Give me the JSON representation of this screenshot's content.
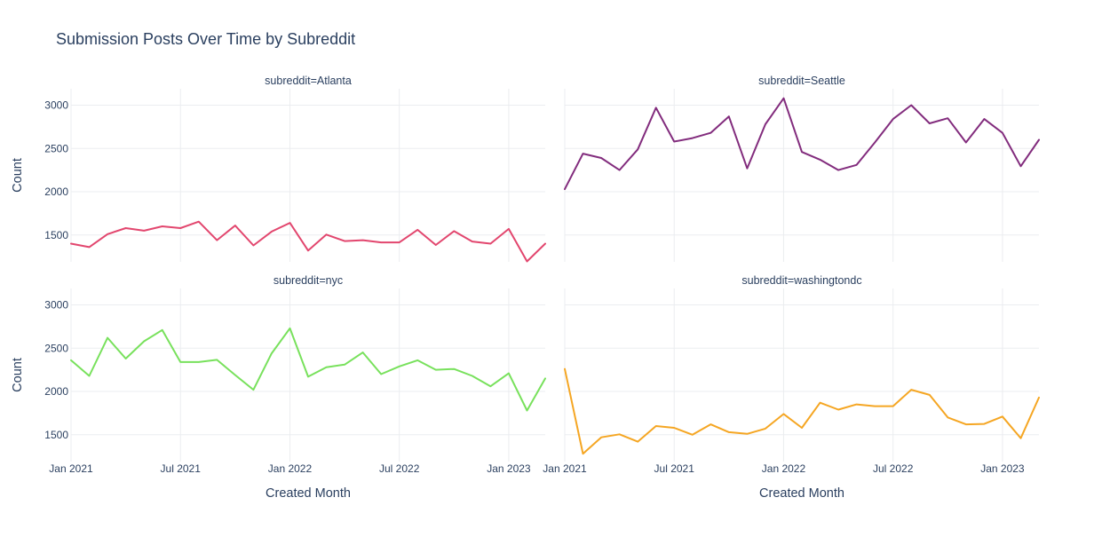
{
  "chart_data": {
    "type": "line",
    "title": "Submission Posts Over Time by Subreddit",
    "ylabel": "Count",
    "xlabel": "Created Month",
    "ylim": [
      1190,
      3190
    ],
    "yticks": [
      1500,
      2000,
      2500,
      3000
    ],
    "xticks": [
      {
        "label": "Jan 2021",
        "index": 0
      },
      {
        "label": "Jul 2021",
        "index": 6
      },
      {
        "label": "Jan 2022",
        "index": 12
      },
      {
        "label": "Jul 2022",
        "index": 18
      },
      {
        "label": "Jan 2023",
        "index": 24
      }
    ],
    "grid": true,
    "x": [
      "2021-01",
      "2021-02",
      "2021-03",
      "2021-04",
      "2021-05",
      "2021-06",
      "2021-07",
      "2021-08",
      "2021-09",
      "2021-10",
      "2021-11",
      "2021-12",
      "2022-01",
      "2022-02",
      "2022-03",
      "2022-04",
      "2022-05",
      "2022-06",
      "2022-07",
      "2022-08",
      "2022-09",
      "2022-10",
      "2022-11",
      "2022-12",
      "2023-01",
      "2023-02",
      "2023-03"
    ],
    "panels": [
      {
        "label": "subreddit=Atlanta",
        "color": "#e2466e",
        "values": [
          1400,
          1360,
          1510,
          1580,
          1550,
          1600,
          1580,
          1655,
          1440,
          1610,
          1380,
          1540,
          1640,
          1320,
          1505,
          1430,
          1440,
          1415,
          1415,
          1560,
          1385,
          1545,
          1425,
          1400,
          1570,
          1195,
          1400
        ]
      },
      {
        "label": "subreddit=Seattle",
        "color": "#822c7d",
        "values": [
          2030,
          2440,
          2390,
          2250,
          2490,
          2970,
          2580,
          2620,
          2680,
          2870,
          2270,
          2780,
          3080,
          2460,
          2370,
          2250,
          2310,
          2570,
          2840,
          3000,
          2790,
          2850,
          2570,
          2840,
          2680,
          2295,
          2600
        ]
      },
      {
        "label": "subreddit=nyc",
        "color": "#78e15c",
        "values": [
          2360,
          2180,
          2620,
          2380,
          2580,
          2710,
          2340,
          2340,
          2365,
          2190,
          2020,
          2440,
          2730,
          2170,
          2280,
          2310,
          2450,
          2200,
          2290,
          2360,
          2250,
          2260,
          2180,
          2060,
          2210,
          1780,
          2150
        ]
      },
      {
        "label": "subreddit=washingtondc",
        "color": "#f5a623",
        "values": [
          2260,
          1280,
          1470,
          1505,
          1420,
          1600,
          1580,
          1500,
          1620,
          1530,
          1510,
          1570,
          1740,
          1580,
          1870,
          1790,
          1850,
          1830,
          1830,
          2020,
          1960,
          1700,
          1620,
          1625,
          1710,
          1460,
          1930
        ]
      }
    ]
  }
}
